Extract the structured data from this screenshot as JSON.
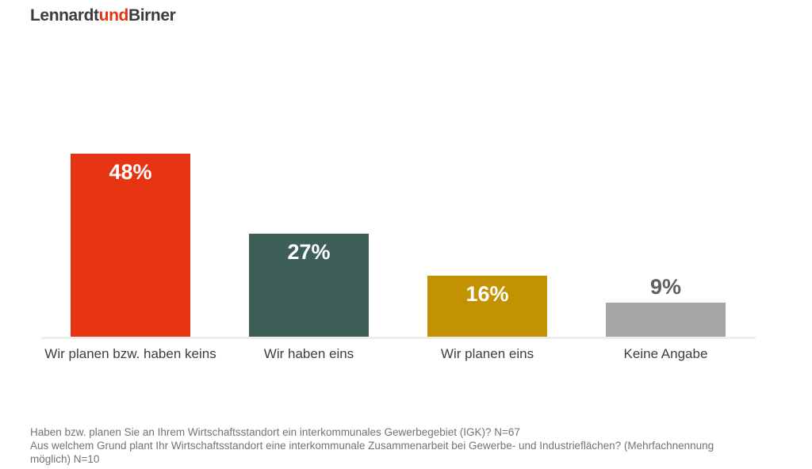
{
  "brand": {
    "part1": "Lennardt",
    "part2": "und",
    "part3": "Birner",
    "accent_color": "#e63312",
    "text_color": "#3c3c3b"
  },
  "chart_data": {
    "type": "bar",
    "categories": [
      "Wir planen bzw. haben keins",
      "Wir haben eins",
      "Wir planen eins",
      "Keine Angabe"
    ],
    "values": [
      48,
      27,
      16,
      9
    ],
    "value_labels": [
      "48%",
      "27%",
      "16%",
      "9%"
    ],
    "unit": "%",
    "bar_colors": [
      "#e63312",
      "#3d5f58",
      "#c29200",
      "#a6a6a6"
    ],
    "value_label_inside": [
      true,
      true,
      true,
      false
    ],
    "value_label_colors": [
      "#ffffff",
      "#ffffff",
      "#ffffff",
      "#5f5f5f"
    ],
    "title": "",
    "xlabel": "",
    "ylabel": "",
    "ylim": [
      0,
      50
    ],
    "grid": false,
    "legend": false,
    "baseline_color": "#ededed"
  },
  "footer": {
    "lines": [
      "Haben bzw. planen Sie an Ihrem Wirtschaftsstandort ein interkommunales Gewerbegebiet (IGK)? N=67",
      "Aus welchem Grund plant Ihr Wirtschaftsstandort eine interkommunale Zusammenarbeit bei Gewerbe- und Industrieflächen? (Mehrfachnennung",
      "möglich) N=10"
    ]
  }
}
